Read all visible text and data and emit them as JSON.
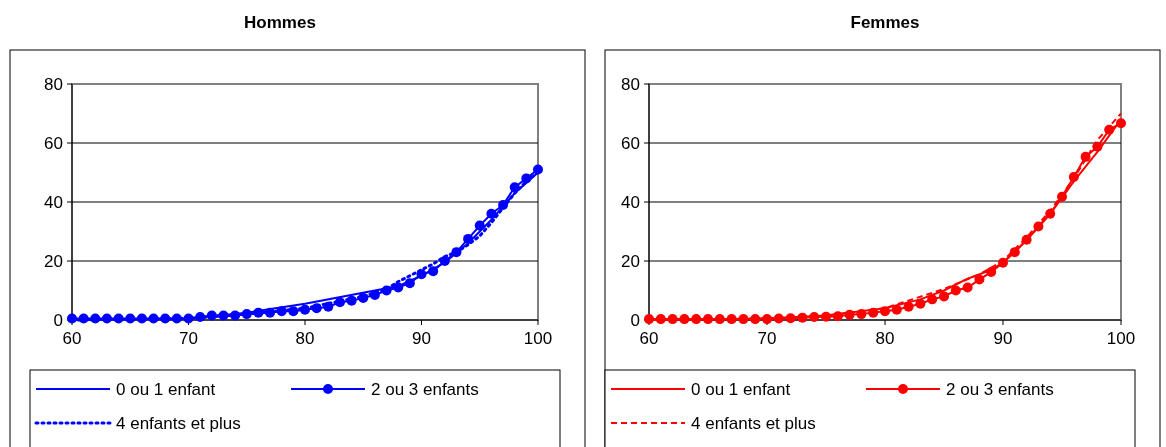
{
  "chart_data": [
    {
      "type": "line",
      "title": "Hommes",
      "xlim": [
        60,
        100
      ],
      "xticks": [
        60,
        70,
        80,
        90,
        100
      ],
      "ylim": [
        0,
        80
      ],
      "yticks": [
        0,
        20,
        40,
        60,
        80
      ],
      "grid": "y",
      "legend": "bottom",
      "series": [
        {
          "name": "0 ou 1 enfant",
          "color": "#0000ff",
          "line_style": "solid",
          "marker": "none",
          "x": [
            60,
            70,
            75,
            80,
            86,
            88,
            90,
            92,
            94,
            96,
            98,
            100
          ],
          "values": [
            0,
            0.5,
            2.5,
            5.5,
            10,
            11.5,
            15,
            19.5,
            26,
            34,
            43,
            50
          ]
        },
        {
          "name": "2 ou 3 enfants",
          "color": "#0000ff",
          "line_style": "solid",
          "marker": "circle",
          "x": [
            60,
            61,
            62,
            63,
            64,
            65,
            66,
            67,
            68,
            69,
            70,
            71,
            72,
            73,
            74,
            75,
            76,
            77,
            78,
            79,
            80,
            81,
            82,
            83,
            84,
            85,
            86,
            87,
            88,
            89,
            90,
            91,
            92,
            93,
            94,
            95,
            96,
            97,
            98,
            99,
            100
          ],
          "values": [
            0.5,
            0.5,
            0.5,
            0.5,
            0.5,
            0.5,
            0.5,
            0.5,
            0.5,
            0.5,
            0.5,
            1,
            1.5,
            1.5,
            1.5,
            2,
            2.5,
            2.5,
            3,
            3,
            3.5,
            4,
            4.5,
            6,
            6.5,
            7.5,
            8.5,
            10,
            11,
            12.5,
            15.5,
            16.5,
            20,
            23,
            27.5,
            32,
            36,
            39,
            45,
            48,
            51
          ]
        },
        {
          "name": "4 enfants et plus",
          "color": "#0000ff",
          "line_style": "dotted",
          "marker": "none",
          "x": [
            60,
            70,
            75,
            80,
            85,
            87,
            88,
            89,
            90,
            91,
            92,
            93,
            94,
            95,
            96,
            97,
            98,
            99,
            100
          ],
          "values": [
            0,
            0.5,
            2,
            4,
            8,
            10.5,
            13,
            15,
            17,
            19,
            21.5,
            23,
            25.5,
            28.5,
            33,
            38,
            43,
            47,
            50
          ]
        }
      ]
    },
    {
      "type": "line",
      "title": "Femmes",
      "xlim": [
        60,
        100
      ],
      "xticks": [
        60,
        70,
        80,
        90,
        100
      ],
      "ylim": [
        0,
        80
      ],
      "yticks": [
        0,
        20,
        40,
        60,
        80
      ],
      "grid": "y",
      "legend": "bottom",
      "series": [
        {
          "name": "0 ou 1 enfant",
          "color": "#ff0000",
          "line_style": "solid",
          "marker": "none",
          "x": [
            60,
            70,
            75,
            80,
            83,
            85,
            87,
            89,
            90,
            92,
            94,
            96,
            98,
            100
          ],
          "values": [
            0,
            0.5,
            1.5,
            4,
            7,
            10,
            14,
            17,
            19.5,
            27,
            36,
            47,
            57,
            68
          ]
        },
        {
          "name": "2 ou 3 enfants",
          "color": "#ff0000",
          "line_style": "solid",
          "marker": "circle",
          "x": [
            60,
            61,
            62,
            63,
            64,
            65,
            66,
            67,
            68,
            69,
            70,
            71,
            72,
            73,
            74,
            75,
            76,
            77,
            78,
            79,
            80,
            81,
            82,
            83,
            84,
            85,
            86,
            87,
            88,
            89,
            90,
            91,
            92,
            93,
            94,
            95,
            96,
            97,
            98,
            99,
            100
          ],
          "values": [
            0.3,
            0.3,
            0.3,
            0.3,
            0.3,
            0.3,
            0.3,
            0.3,
            0.3,
            0.3,
            0.3,
            0.5,
            0.6,
            0.8,
            1,
            1.1,
            1.3,
            1.8,
            2,
            2.5,
            3,
            3.5,
            4.5,
            5.5,
            7,
            8,
            10,
            11,
            13.7,
            16.3,
            19.4,
            23,
            27.2,
            31.7,
            36,
            41.8,
            48.5,
            55.3,
            58.7,
            64.5,
            66.7
          ]
        },
        {
          "name": "4 enfants et plus",
          "color": "#ff0000",
          "line_style": "dashed",
          "marker": "none",
          "x": [
            60,
            70,
            75,
            80,
            85,
            88,
            90,
            92,
            94,
            96,
            98,
            100
          ],
          "values": [
            0,
            0.5,
            1.5,
            4,
            10.5,
            15.5,
            20,
            28,
            37,
            48,
            61,
            70
          ]
        }
      ]
    }
  ]
}
